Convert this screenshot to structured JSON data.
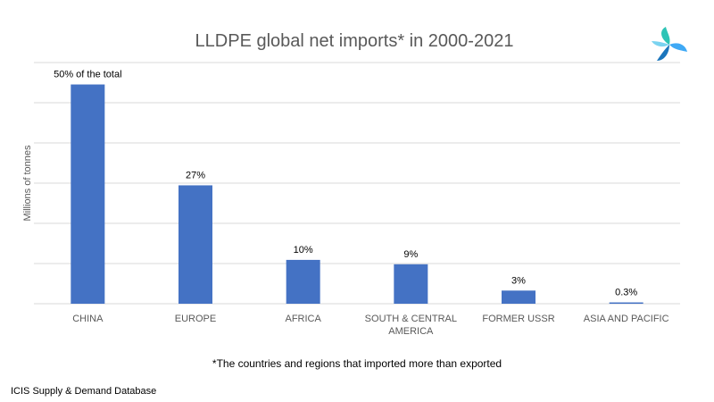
{
  "chart_data": {
    "type": "bar",
    "title": "LLDPE global net imports* in 2000-2021",
    "xlabel": "",
    "ylabel": "Millions of tonnes",
    "categories": [
      "CHINA",
      "EUROPE",
      "AFRICA",
      "SOUTH & CENTRAL AMERICA",
      "FORMER USSR",
      "ASIA AND PACIFIC"
    ],
    "values": [
      50,
      27,
      10,
      9,
      3,
      0.3
    ],
    "data_labels": [
      "50% of the total",
      "27%",
      "10%",
      "9%",
      "3%",
      "0.3%"
    ],
    "ylim": [
      0,
      55
    ],
    "grid": true,
    "legend": "none",
    "bar_color": "#4472C4",
    "grid_color": "#D9D9D9"
  },
  "footnote": "*The countries and regions that imported more than exported",
  "source": "ICIS Supply  & Demand Database",
  "logo": {
    "icon": "icis-logo-icon"
  }
}
